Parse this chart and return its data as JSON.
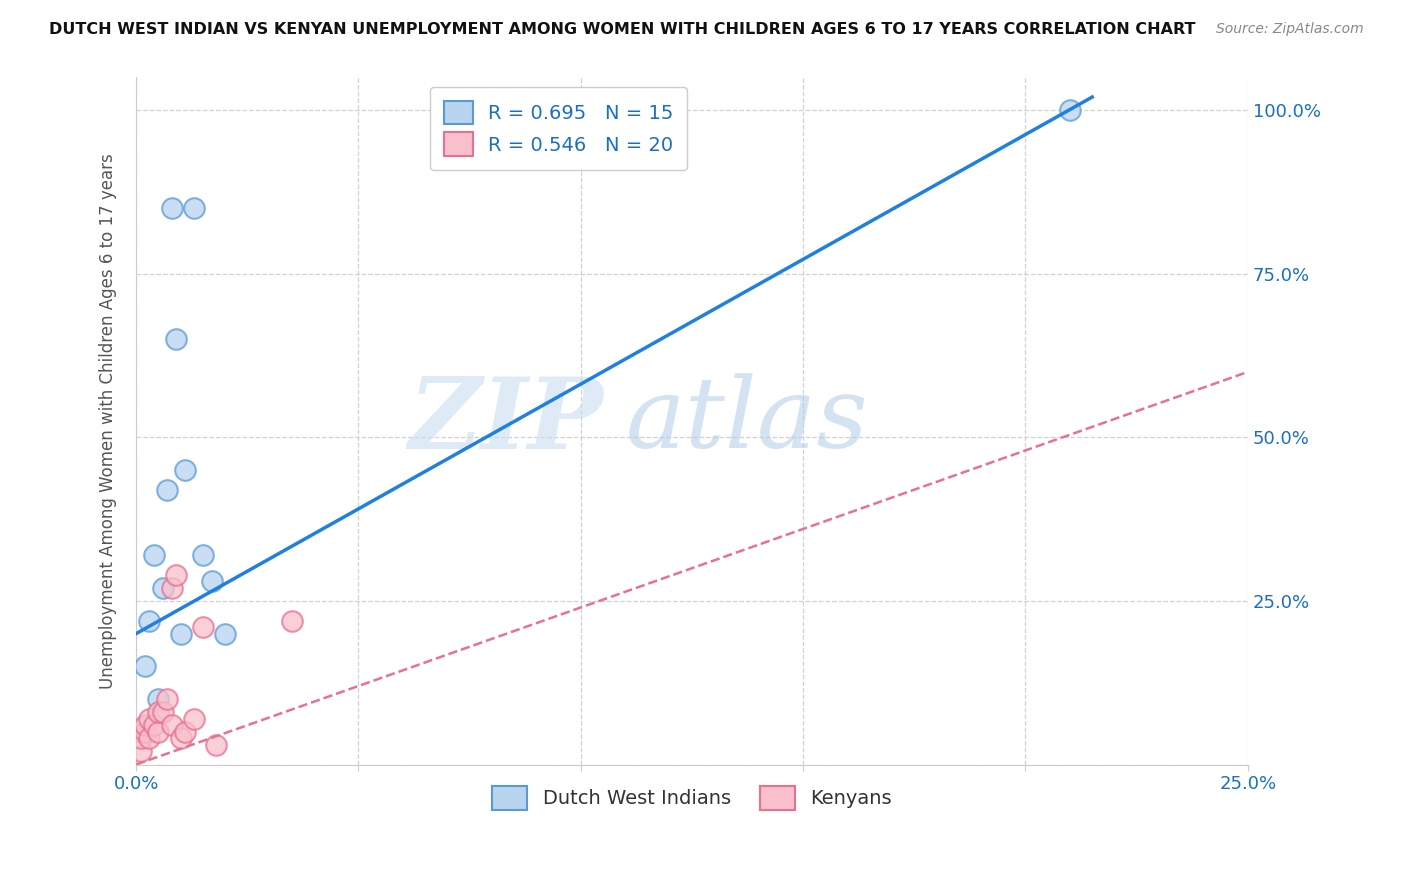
{
  "title": "DUTCH WEST INDIAN VS KENYAN UNEMPLOYMENT AMONG WOMEN WITH CHILDREN AGES 6 TO 17 YEARS CORRELATION CHART",
  "source": "Source: ZipAtlas.com",
  "ylabel": "Unemployment Among Women with Children Ages 6 to 17 years",
  "xlim": [
    0.0,
    0.25
  ],
  "ylim": [
    0.0,
    1.05
  ],
  "x_tick_positions": [
    0.0,
    0.05,
    0.1,
    0.15,
    0.2,
    0.25
  ],
  "x_tick_labels": [
    "0.0%",
    "",
    "",
    "",
    "",
    "25.0%"
  ],
  "y_tick_positions": [
    0.0,
    0.25,
    0.5,
    0.75,
    1.0
  ],
  "y_tick_labels": [
    "",
    "25.0%",
    "50.0%",
    "75.0%",
    "100.0%"
  ],
  "dutch_R": "0.695",
  "dutch_N": "15",
  "kenyan_R": "0.546",
  "kenyan_N": "20",
  "dutch_scatter_color": "#b8d4ee",
  "dutch_scatter_edge": "#5b9bd5",
  "dutch_line_color": "#2080e0",
  "kenyan_scatter_color": "#f7c0cc",
  "kenyan_scatter_edge": "#e87090",
  "kenyan_line_color": "#e87090",
  "dutch_x": [
    0.002,
    0.003,
    0.004,
    0.005,
    0.006,
    0.007,
    0.008,
    0.009,
    0.01,
    0.011,
    0.013,
    0.015,
    0.017,
    0.02,
    0.21
  ],
  "dutch_y": [
    0.15,
    0.22,
    0.32,
    0.1,
    0.27,
    0.42,
    0.85,
    0.65,
    0.2,
    0.45,
    0.85,
    0.32,
    0.28,
    0.2,
    1.0
  ],
  "kenyan_x": [
    0.001,
    0.001,
    0.002,
    0.002,
    0.003,
    0.003,
    0.004,
    0.005,
    0.005,
    0.006,
    0.007,
    0.008,
    0.008,
    0.009,
    0.01,
    0.011,
    0.013,
    0.015,
    0.018,
    0.035
  ],
  "kenyan_y": [
    0.02,
    0.04,
    0.05,
    0.06,
    0.04,
    0.07,
    0.06,
    0.05,
    0.08,
    0.08,
    0.1,
    0.06,
    0.27,
    0.29,
    0.04,
    0.05,
    0.07,
    0.21,
    0.03,
    0.22
  ],
  "dutch_line_x0": 0.0,
  "dutch_line_y0": 0.2,
  "dutch_line_x1": 0.215,
  "dutch_line_y1": 1.02,
  "kenyan_line_x0": 0.0,
  "kenyan_line_y0": 0.0,
  "kenyan_line_x1": 0.25,
  "kenyan_line_y1": 0.6,
  "watermark_zip": "ZIP",
  "watermark_atlas": "atlas",
  "legend_label_dutch": "Dutch West Indians",
  "legend_label_kenyan": "Kenyans",
  "background_color": "#ffffff",
  "grid_color": "#cccccc",
  "title_color": "#111111",
  "source_color": "#888888",
  "tick_color": "#1a6fc4",
  "ylabel_color": "#555555"
}
